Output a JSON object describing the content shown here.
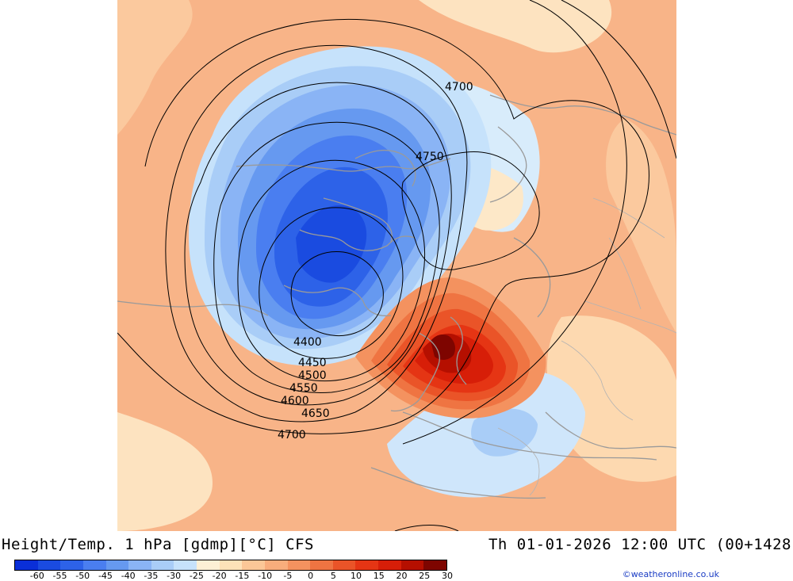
{
  "header": {
    "title": "Height/Temp. 1 hPa [gdmp][°C] CFS",
    "valid_time": "Th 01-01-2026 12:00 UTC (00+1428"
  },
  "footer": {
    "credit": "©weatheronline.co.uk"
  },
  "legend": {
    "tick_labels": [
      "-60",
      "-55",
      "-50",
      "-45",
      "-40",
      "-35",
      "-30",
      "-25",
      "-20",
      "-15",
      "-10",
      "-5",
      "0",
      "5",
      "10",
      "15",
      "20",
      "25",
      "30"
    ],
    "colors": [
      "#0a2fd8",
      "#1a4be0",
      "#2d62e8",
      "#4a7ef0",
      "#6699f0",
      "#8ab4f5",
      "#a9cdf7",
      "#c6e2fb",
      "#fdf0d5",
      "#fde2b8",
      "#fbc797",
      "#f8ad7c",
      "#f4925f",
      "#ef7442",
      "#ea5428",
      "#e53514",
      "#d71e08",
      "#b50f00",
      "#7e0500"
    ]
  },
  "contours": {
    "labels": [
      "4400",
      "4450",
      "4500",
      "4550",
      "4600",
      "4650",
      "4700",
      "4700",
      "4750"
    ]
  },
  "colors": {
    "background_warm": "#f8b48a",
    "cold_core": "#2a5fe6",
    "warm_core": "#c41400",
    "coastline": "#9a9a9a",
    "contour": "#000000"
  }
}
